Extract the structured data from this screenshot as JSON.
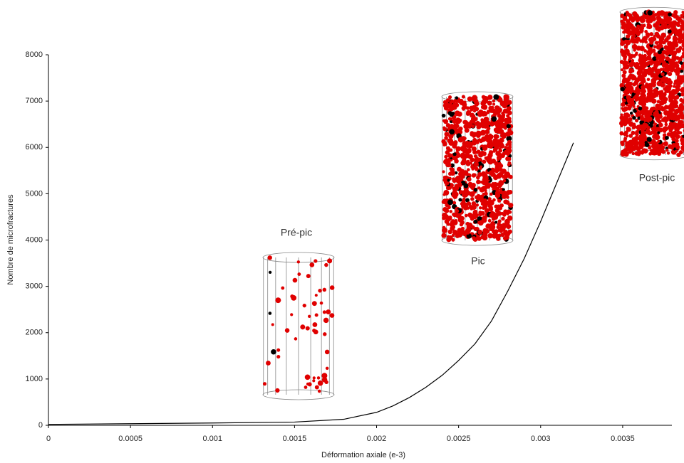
{
  "chart_data": {
    "type": "line",
    "x_label": "Déformation axiale (e-3)",
    "y_label": "Nombre de microfractures",
    "x": [
      0,
      0.0005,
      0.001,
      0.0015,
      0.0018,
      0.002,
      0.0021,
      0.0022,
      0.0023,
      0.0024,
      0.0025,
      0.0026,
      0.0027,
      0.0028,
      0.0029,
      0.003,
      0.0031,
      0.0032
    ],
    "series": [
      {
        "color": "#000000",
        "values": [
          20,
          35,
          50,
          70,
          130,
          280,
          420,
          600,
          820,
          1080,
          1400,
          1760,
          2250,
          2900,
          3600,
          4400,
          5250,
          6100
        ]
      }
    ],
    "xlim": [
      0,
      0.0038
    ],
    "ylim": [
      0,
      8000
    ],
    "xticks": [
      0,
      0.0005,
      0.001,
      0.0015,
      0.002,
      0.0025,
      0.003,
      0.0035
    ],
    "yticks": [
      0,
      1000,
      2000,
      3000,
      4000,
      5000,
      6000,
      7000,
      8000
    ],
    "grid": false,
    "annotations": [
      "Pré-pic",
      "Pic",
      "Post-pic"
    ]
  }
}
